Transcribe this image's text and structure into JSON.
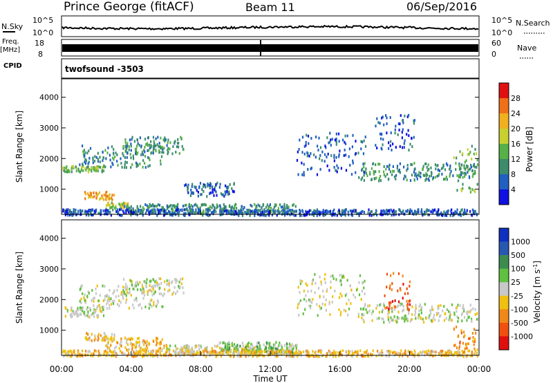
{
  "header": {
    "title": "Prince George (fitACF)",
    "beam": "Beam 11",
    "date": "06/Sep/2016"
  },
  "top_panels": {
    "nsky_label": "N.Sky",
    "nsky_tick_top": "10^5",
    "nsky_tick_bottom": "10^0",
    "nsearch_label": "N.Search",
    "nsearch_tick_top": "10^5",
    "nsearch_tick_bottom": "10^0",
    "freq_label_1": "Freq.",
    "freq_label_2": "[MHz]",
    "freq_tick_top": "18",
    "freq_tick_bottom": "8",
    "nave_label": "Nave",
    "nave_tick_top": "60",
    "nave_tick_bottom": "0",
    "cpid_label": "CPID",
    "cpid_value": "twofsound -3503"
  },
  "chart_data": [
    {
      "type": "heatmap",
      "title": "Power",
      "ylabel": "Slant Range [km]",
      "xlabel": "",
      "ylim": [
        180,
        4600
      ],
      "yticks": [
        "1000",
        "2000",
        "3000",
        "4000"
      ],
      "colorbar_label": "Power [dB]",
      "colorbar_ticks": [
        "4",
        "8",
        "12",
        "16",
        "20",
        "24",
        "28"
      ],
      "colors": [
        "#1010e0",
        "#2060c0",
        "#3c8c6c",
        "#58b048",
        "#c8d030",
        "#f0b020",
        "#f07018",
        "#e01010"
      ],
      "bands": [
        {
          "t0": 0.0,
          "t1": 2.4,
          "r0": 1600,
          "r1": 1800,
          "level": 3
        },
        {
          "t0": 1.0,
          "t1": 5.8,
          "r0": 1750,
          "r1": 2500,
          "level": 2
        },
        {
          "t0": 3.5,
          "t1": 7.0,
          "r0": 2200,
          "r1": 2750,
          "level": 2
        },
        {
          "t0": 1.3,
          "t1": 3.0,
          "r0": 700,
          "r1": 950,
          "level": 5
        },
        {
          "t0": 2.5,
          "t1": 3.8,
          "r0": 400,
          "r1": 600,
          "level": 4
        },
        {
          "t0": 7.0,
          "t1": 10.0,
          "r0": 800,
          "r1": 1250,
          "level": 1
        },
        {
          "t0": 3.5,
          "t1": 13.5,
          "r0": 250,
          "r1": 550,
          "level": 2
        },
        {
          "t0": 0.0,
          "t1": 24.0,
          "r0": 180,
          "r1": 380,
          "level": 1
        },
        {
          "t0": 13.5,
          "t1": 17.5,
          "r0": 1500,
          "r1": 2900,
          "level": 1
        },
        {
          "t0": 17.0,
          "t1": 24.0,
          "r0": 1300,
          "r1": 1900,
          "level": 2
        },
        {
          "t0": 18.0,
          "t1": 20.3,
          "r0": 2300,
          "r1": 3500,
          "level": 1
        },
        {
          "t0": 22.5,
          "t1": 24.0,
          "r0": 900,
          "r1": 2500,
          "level": 3
        }
      ]
    },
    {
      "type": "heatmap",
      "title": "Velocity",
      "ylabel": "Slant Range [km]",
      "xlabel": "Time UT",
      "ylim": [
        180,
        4600
      ],
      "xlim": [
        0,
        24
      ],
      "xticks": [
        "00:00",
        "04:00",
        "08:00",
        "12:00",
        "16:00",
        "20:00",
        "00:00"
      ],
      "yticks": [
        "1000",
        "2000",
        "3000",
        "4000"
      ],
      "colorbar_label": "Velocity [m s^-1]",
      "colorbar_ticks": [
        "1000",
        "500",
        "100",
        "25",
        "-25",
        "-100",
        "-500",
        "-1000"
      ],
      "colors": [
        "#1030c0",
        "#2858b0",
        "#3c8c50",
        "#60c040",
        "#c8c8c8",
        "#f0c010",
        "#f08818",
        "#f05010",
        "#e01010"
      ],
      "bands": [
        {
          "t0": 0.0,
          "t1": 2.4,
          "r0": 1450,
          "r1": 1800,
          "level": 4
        },
        {
          "t0": 1.0,
          "t1": 5.8,
          "r0": 1750,
          "r1": 2500,
          "level": 4
        },
        {
          "t0": 3.5,
          "t1": 7.0,
          "r0": 2200,
          "r1": 2750,
          "level": 4
        },
        {
          "t0": 1.3,
          "t1": 3.0,
          "r0": 700,
          "r1": 950,
          "level": 5
        },
        {
          "t0": 2.5,
          "t1": 6.0,
          "r0": 400,
          "r1": 800,
          "level": 5
        },
        {
          "t0": 6.0,
          "t1": 13.5,
          "r0": 250,
          "r1": 550,
          "level": 4
        },
        {
          "t0": 9.0,
          "t1": 13.5,
          "r0": 300,
          "r1": 650,
          "level": 3
        },
        {
          "t0": 0.0,
          "t1": 24.0,
          "r0": 180,
          "r1": 380,
          "level": 5
        },
        {
          "t0": 13.5,
          "t1": 17.5,
          "r0": 1500,
          "r1": 2900,
          "level": 4
        },
        {
          "t0": 17.0,
          "t1": 24.0,
          "r0": 1300,
          "r1": 1900,
          "level": 4
        },
        {
          "t0": 18.5,
          "t1": 20.0,
          "r0": 1700,
          "r1": 2900,
          "level": 7
        },
        {
          "t0": 22.5,
          "t1": 24.0,
          "r0": 400,
          "r1": 1200,
          "level": 6
        }
      ]
    }
  ]
}
